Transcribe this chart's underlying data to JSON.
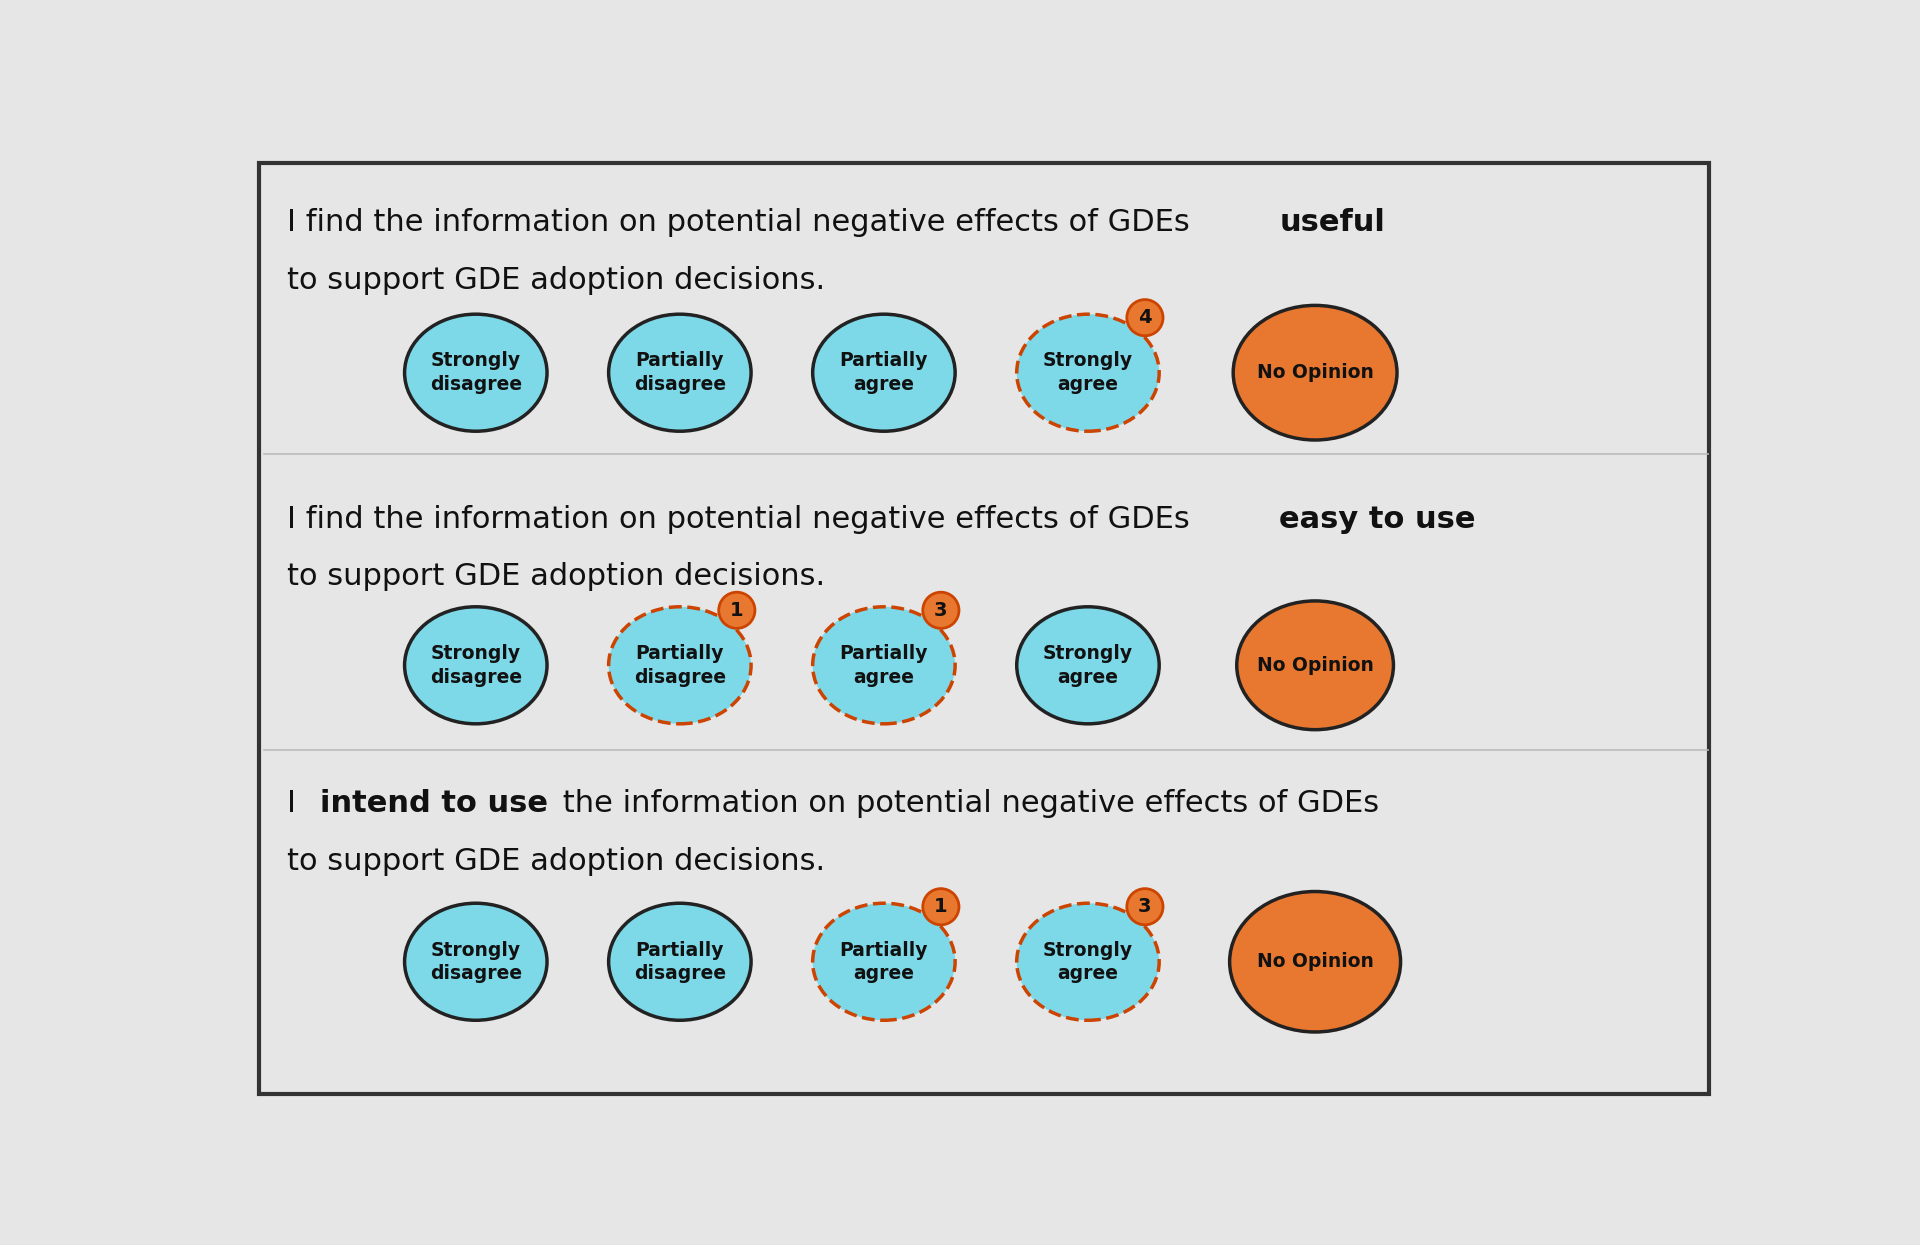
{
  "background_color": "#e6e6e6",
  "border_color": "#333333",
  "cyan_color": "#7dd8e8",
  "orange_color": "#e87830",
  "text_color": "#111111",
  "badge_border_color": "#cc4400",
  "divider_color": "#bbbbbb",
  "rows": [
    {
      "line1_normal_pre": "I find the information on potential negative effects of GDEs ",
      "line1_bold": "useful",
      "line1_normal_post": "",
      "line2": "to support GDE adoption decisions.",
      "circles": [
        {
          "label": "Strongly\ndisagree",
          "color": "cyan",
          "badge": null,
          "size": 1.0
        },
        {
          "label": "Partially\ndisagree",
          "color": "cyan",
          "badge": null,
          "size": 1.0
        },
        {
          "label": "Partially\nagree",
          "color": "cyan",
          "badge": null,
          "size": 1.0
        },
        {
          "label": "Strongly\nagree",
          "color": "cyan",
          "badge": "4",
          "size": 1.0
        },
        {
          "label": "No Opinion",
          "color": "orange",
          "badge": null,
          "size": 1.15
        }
      ]
    },
    {
      "line1_normal_pre": "I find the information on potential negative effects of GDEs ",
      "line1_bold": "easy to use",
      "line1_normal_post": "",
      "line2": "to support GDE adoption decisions.",
      "circles": [
        {
          "label": "Strongly\ndisagree",
          "color": "cyan",
          "badge": null,
          "size": 1.0
        },
        {
          "label": "Partially\ndisagree",
          "color": "cyan",
          "badge": "1",
          "size": 1.0
        },
        {
          "label": "Partially\nagree",
          "color": "cyan",
          "badge": "3",
          "size": 1.0
        },
        {
          "label": "Strongly\nagree",
          "color": "cyan",
          "badge": null,
          "size": 1.0
        },
        {
          "label": "No Opinion",
          "color": "orange",
          "badge": null,
          "size": 1.1
        }
      ]
    },
    {
      "line1_normal_pre": "I ",
      "line1_bold": "intend to use",
      "line1_normal_post": " the information on potential negative effects of GDEs",
      "line2": "to support GDE adoption decisions.",
      "circles": [
        {
          "label": "Strongly\ndisagree",
          "color": "cyan",
          "badge": null,
          "size": 1.0
        },
        {
          "label": "Partially\ndisagree",
          "color": "cyan",
          "badge": null,
          "size": 1.0
        },
        {
          "label": "Partially\nagree",
          "color": "cyan",
          "badge": "1",
          "size": 1.0
        },
        {
          "label": "Strongly\nagree",
          "color": "cyan",
          "badge": "3",
          "size": 1.0
        },
        {
          "label": "No Opinion",
          "color": "orange",
          "badge": null,
          "size": 1.2
        }
      ]
    }
  ]
}
